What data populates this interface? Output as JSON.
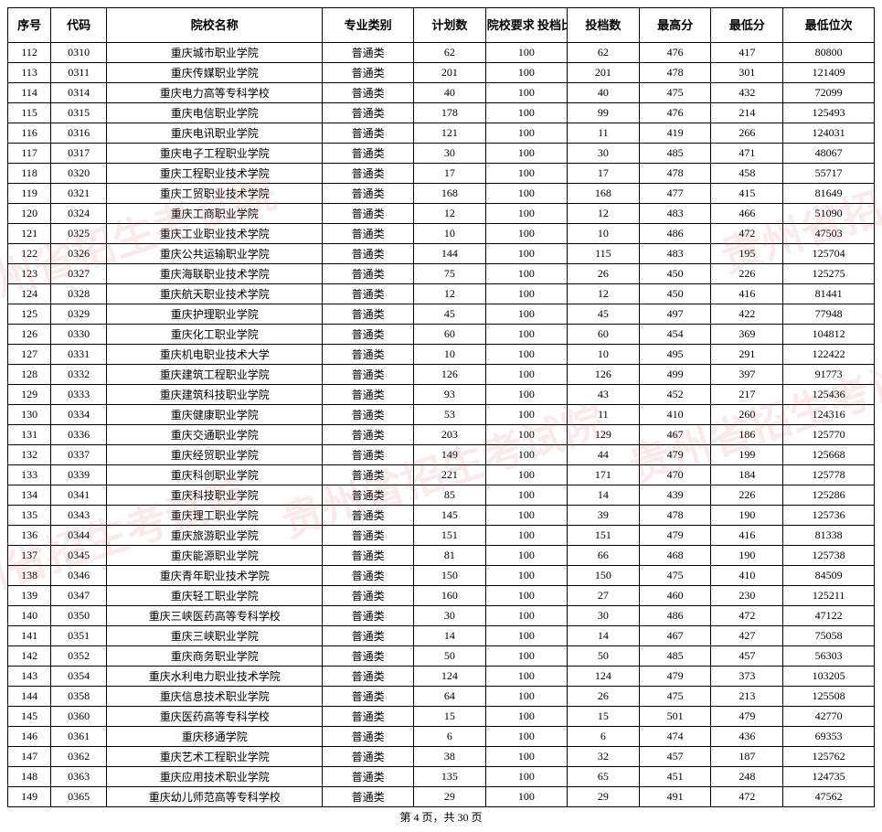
{
  "headers": {
    "seq": "序号",
    "code": "代码",
    "name": "院校名称",
    "type": "专业类别",
    "plan": "计划数",
    "ratio": "院校要求\n投档比例(%)",
    "filed": "投档数",
    "max": "最高分",
    "min": "最低分",
    "rank": "最低位次"
  },
  "rows": [
    {
      "seq": "112",
      "code": "0310",
      "name": "重庆城市职业学院",
      "type": "普通类",
      "plan": "62",
      "ratio": "100",
      "filed": "62",
      "max": "476",
      "min": "417",
      "rank": "80800"
    },
    {
      "seq": "113",
      "code": "0311",
      "name": "重庆传媒职业学院",
      "type": "普通类",
      "plan": "201",
      "ratio": "100",
      "filed": "201",
      "max": "478",
      "min": "301",
      "rank": "121409"
    },
    {
      "seq": "114",
      "code": "0314",
      "name": "重庆电力高等专科学校",
      "type": "普通类",
      "plan": "40",
      "ratio": "100",
      "filed": "40",
      "max": "475",
      "min": "432",
      "rank": "72099"
    },
    {
      "seq": "115",
      "code": "0315",
      "name": "重庆电信职业学院",
      "type": "普通类",
      "plan": "178",
      "ratio": "100",
      "filed": "99",
      "max": "476",
      "min": "214",
      "rank": "125493"
    },
    {
      "seq": "116",
      "code": "0316",
      "name": "重庆电讯职业学院",
      "type": "普通类",
      "plan": "121",
      "ratio": "100",
      "filed": "11",
      "max": "419",
      "min": "266",
      "rank": "124031"
    },
    {
      "seq": "117",
      "code": "0317",
      "name": "重庆电子工程职业学院",
      "type": "普通类",
      "plan": "30",
      "ratio": "100",
      "filed": "30",
      "max": "485",
      "min": "471",
      "rank": "48067"
    },
    {
      "seq": "118",
      "code": "0320",
      "name": "重庆工程职业技术学院",
      "type": "普通类",
      "plan": "17",
      "ratio": "100",
      "filed": "17",
      "max": "478",
      "min": "458",
      "rank": "55717"
    },
    {
      "seq": "119",
      "code": "0321",
      "name": "重庆工贸职业技术学院",
      "type": "普通类",
      "plan": "168",
      "ratio": "100",
      "filed": "168",
      "max": "477",
      "min": "415",
      "rank": "81649"
    },
    {
      "seq": "120",
      "code": "0324",
      "name": "重庆工商职业学院",
      "type": "普通类",
      "plan": "12",
      "ratio": "100",
      "filed": "12",
      "max": "483",
      "min": "466",
      "rank": "51090"
    },
    {
      "seq": "121",
      "code": "0325",
      "name": "重庆工业职业技术学院",
      "type": "普通类",
      "plan": "10",
      "ratio": "100",
      "filed": "10",
      "max": "486",
      "min": "472",
      "rank": "47503"
    },
    {
      "seq": "122",
      "code": "0326",
      "name": "重庆公共运输职业学院",
      "type": "普通类",
      "plan": "144",
      "ratio": "100",
      "filed": "115",
      "max": "483",
      "min": "195",
      "rank": "125704"
    },
    {
      "seq": "123",
      "code": "0327",
      "name": "重庆海联职业技术学院",
      "type": "普通类",
      "plan": "75",
      "ratio": "100",
      "filed": "26",
      "max": "450",
      "min": "226",
      "rank": "125275"
    },
    {
      "seq": "124",
      "code": "0328",
      "name": "重庆航天职业技术学院",
      "type": "普通类",
      "plan": "12",
      "ratio": "100",
      "filed": "12",
      "max": "450",
      "min": "416",
      "rank": "81441"
    },
    {
      "seq": "125",
      "code": "0329",
      "name": "重庆护理职业学院",
      "type": "普通类",
      "plan": "45",
      "ratio": "100",
      "filed": "45",
      "max": "497",
      "min": "422",
      "rank": "77948"
    },
    {
      "seq": "126",
      "code": "0330",
      "name": "重庆化工职业学院",
      "type": "普通类",
      "plan": "60",
      "ratio": "100",
      "filed": "60",
      "max": "454",
      "min": "369",
      "rank": "104812"
    },
    {
      "seq": "127",
      "code": "0331",
      "name": "重庆机电职业技术大学",
      "type": "普通类",
      "plan": "10",
      "ratio": "100",
      "filed": "10",
      "max": "495",
      "min": "291",
      "rank": "122422"
    },
    {
      "seq": "128",
      "code": "0332",
      "name": "重庆建筑工程职业学院",
      "type": "普通类",
      "plan": "126",
      "ratio": "100",
      "filed": "126",
      "max": "499",
      "min": "397",
      "rank": "91773"
    },
    {
      "seq": "129",
      "code": "0333",
      "name": "重庆建筑科技职业学院",
      "type": "普通类",
      "plan": "93",
      "ratio": "100",
      "filed": "43",
      "max": "452",
      "min": "217",
      "rank": "125436"
    },
    {
      "seq": "130",
      "code": "0334",
      "name": "重庆健康职业学院",
      "type": "普通类",
      "plan": "53",
      "ratio": "100",
      "filed": "11",
      "max": "410",
      "min": "260",
      "rank": "124316"
    },
    {
      "seq": "131",
      "code": "0336",
      "name": "重庆交通职业学院",
      "type": "普通类",
      "plan": "203",
      "ratio": "100",
      "filed": "129",
      "max": "467",
      "min": "186",
      "rank": "125770"
    },
    {
      "seq": "132",
      "code": "0337",
      "name": "重庆经贸职业学院",
      "type": "普通类",
      "plan": "149",
      "ratio": "100",
      "filed": "44",
      "max": "479",
      "min": "199",
      "rank": "125668"
    },
    {
      "seq": "133",
      "code": "0339",
      "name": "重庆科创职业学院",
      "type": "普通类",
      "plan": "221",
      "ratio": "100",
      "filed": "171",
      "max": "470",
      "min": "184",
      "rank": "125778"
    },
    {
      "seq": "134",
      "code": "0341",
      "name": "重庆科技职业学院",
      "type": "普通类",
      "plan": "85",
      "ratio": "100",
      "filed": "14",
      "max": "439",
      "min": "226",
      "rank": "125286"
    },
    {
      "seq": "135",
      "code": "0343",
      "name": "重庆理工职业学院",
      "type": "普通类",
      "plan": "145",
      "ratio": "100",
      "filed": "39",
      "max": "478",
      "min": "190",
      "rank": "125736"
    },
    {
      "seq": "136",
      "code": "0344",
      "name": "重庆旅游职业学院",
      "type": "普通类",
      "plan": "151",
      "ratio": "100",
      "filed": "151",
      "max": "479",
      "min": "416",
      "rank": "81338"
    },
    {
      "seq": "137",
      "code": "0345",
      "name": "重庆能源职业学院",
      "type": "普通类",
      "plan": "81",
      "ratio": "100",
      "filed": "66",
      "max": "468",
      "min": "190",
      "rank": "125738"
    },
    {
      "seq": "138",
      "code": "0346",
      "name": "重庆青年职业技术学院",
      "type": "普通类",
      "plan": "150",
      "ratio": "100",
      "filed": "150",
      "max": "475",
      "min": "410",
      "rank": "84509"
    },
    {
      "seq": "139",
      "code": "0347",
      "name": "重庆轻工职业学院",
      "type": "普通类",
      "plan": "160",
      "ratio": "100",
      "filed": "27",
      "max": "460",
      "min": "230",
      "rank": "125211"
    },
    {
      "seq": "140",
      "code": "0350",
      "name": "重庆三峡医药高等专科学校",
      "type": "普通类",
      "plan": "30",
      "ratio": "100",
      "filed": "30",
      "max": "486",
      "min": "472",
      "rank": "47122"
    },
    {
      "seq": "141",
      "code": "0351",
      "name": "重庆三峡职业学院",
      "type": "普通类",
      "plan": "14",
      "ratio": "100",
      "filed": "14",
      "max": "467",
      "min": "427",
      "rank": "75058"
    },
    {
      "seq": "142",
      "code": "0352",
      "name": "重庆商务职业学院",
      "type": "普通类",
      "plan": "50",
      "ratio": "100",
      "filed": "50",
      "max": "485",
      "min": "457",
      "rank": "56303"
    },
    {
      "seq": "143",
      "code": "0354",
      "name": "重庆水利电力职业技术学院",
      "type": "普通类",
      "plan": "124",
      "ratio": "100",
      "filed": "124",
      "max": "479",
      "min": "373",
      "rank": "103205"
    },
    {
      "seq": "144",
      "code": "0358",
      "name": "重庆信息技术职业学院",
      "type": "普通类",
      "plan": "64",
      "ratio": "100",
      "filed": "26",
      "max": "475",
      "min": "213",
      "rank": "125508"
    },
    {
      "seq": "145",
      "code": "0360",
      "name": "重庆医药高等专科学校",
      "type": "普通类",
      "plan": "15",
      "ratio": "100",
      "filed": "15",
      "max": "501",
      "min": "479",
      "rank": "42770"
    },
    {
      "seq": "146",
      "code": "0361",
      "name": "重庆移通学院",
      "type": "普通类",
      "plan": "6",
      "ratio": "100",
      "filed": "6",
      "max": "474",
      "min": "436",
      "rank": "69353"
    },
    {
      "seq": "147",
      "code": "0362",
      "name": "重庆艺术工程职业学院",
      "type": "普通类",
      "plan": "38",
      "ratio": "100",
      "filed": "32",
      "max": "457",
      "min": "187",
      "rank": "125762"
    },
    {
      "seq": "148",
      "code": "0363",
      "name": "重庆应用技术职业学院",
      "type": "普通类",
      "plan": "135",
      "ratio": "100",
      "filed": "65",
      "max": "451",
      "min": "248",
      "rank": "124735"
    },
    {
      "seq": "149",
      "code": "0365",
      "name": "重庆幼儿师范高等专科学校",
      "type": "普通类",
      "plan": "29",
      "ratio": "100",
      "filed": "29",
      "max": "491",
      "min": "472",
      "rank": "47562"
    }
  ],
  "pager": "第 4 页，共 30 页",
  "watermark_text": "贵州省招生考试院",
  "colors": {
    "border": "#000000",
    "bg": "#ffffff",
    "watermark": "rgba(220,80,80,0.12)"
  }
}
